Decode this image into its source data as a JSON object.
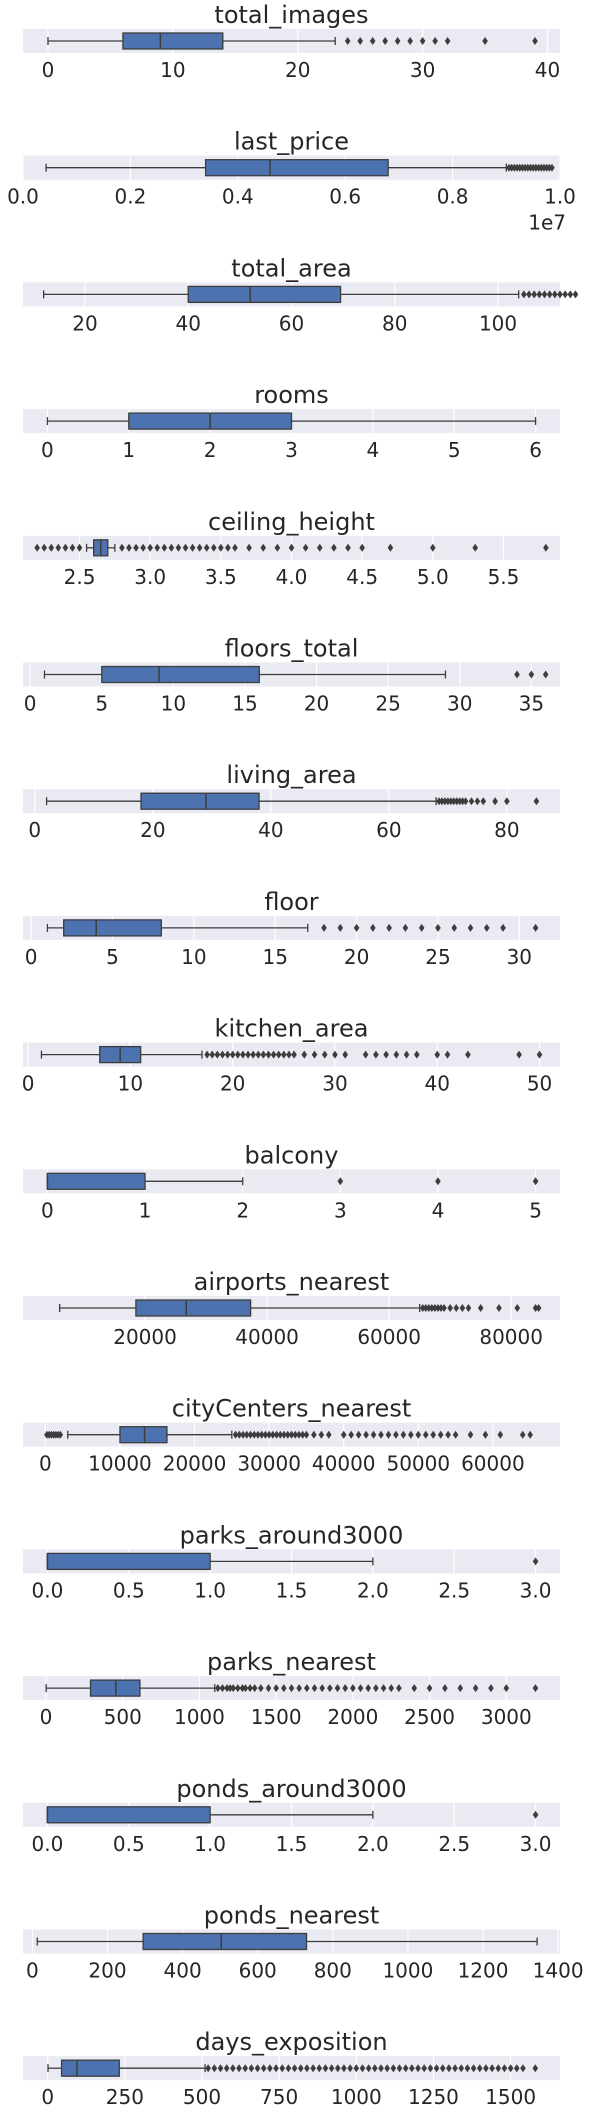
{
  "style": {
    "panel_bg": "#eaeaf2",
    "box_fill": "#4c72b0",
    "line_color": "#3d3d3d",
    "text_color": "#262626",
    "grid": true,
    "grid_color": "#ffffff"
  },
  "chart_data": [
    {
      "type": "boxplot",
      "title": "total_images",
      "orientation": "horizontal",
      "xlim": [
        -2,
        41
      ],
      "ticks": [
        0,
        10,
        20,
        30,
        40
      ],
      "tick_labels": [
        "0",
        "10",
        "20",
        "30",
        "40"
      ],
      "offset_label": "",
      "box": {
        "whisker_low": 0,
        "q1": 6,
        "median": 9,
        "q3": 14,
        "whisker_high": 23
      },
      "outliers": [
        24,
        25,
        26,
        27,
        28,
        29,
        30,
        31,
        32,
        35,
        39
      ]
    },
    {
      "type": "boxplot",
      "title": "last_price",
      "orientation": "horizontal",
      "xlim": [
        0,
        1.0
      ],
      "ticks": [
        0,
        0.2,
        0.4,
        0.6,
        0.8,
        1.0
      ],
      "tick_labels": [
        "0.0",
        "0.2",
        "0.4",
        "0.6",
        "0.8",
        "1.0"
      ],
      "offset_label": "1e7",
      "box": {
        "whisker_low": 0.043,
        "q1": 0.34,
        "median": 0.46,
        "q3": 0.68,
        "whisker_high": 0.9
      },
      "outliers": [
        0.905,
        0.91,
        0.915,
        0.92,
        0.925,
        0.93,
        0.935,
        0.94,
        0.945,
        0.95,
        0.955,
        0.96,
        0.965,
        0.97,
        0.975,
        0.98,
        0.985
      ]
    },
    {
      "type": "boxplot",
      "title": "total_area",
      "orientation": "horizontal",
      "xlim": [
        8,
        112
      ],
      "ticks": [
        20,
        40,
        60,
        80,
        100
      ],
      "tick_labels": [
        "20",
        "40",
        "60",
        "80",
        "100"
      ],
      "offset_label": "",
      "box": {
        "whisker_low": 12,
        "q1": 40,
        "median": 52,
        "q3": 69.5,
        "whisker_high": 104
      },
      "outliers": [
        105,
        106,
        107,
        108,
        109,
        110,
        111,
        112,
        113,
        114,
        115
      ]
    },
    {
      "type": "boxplot",
      "title": "rooms",
      "orientation": "horizontal",
      "xlim": [
        -0.3,
        6.3
      ],
      "ticks": [
        0,
        1,
        2,
        3,
        4,
        5,
        6
      ],
      "tick_labels": [
        "0",
        "1",
        "2",
        "3",
        "4",
        "5",
        "6"
      ],
      "offset_label": "",
      "box": {
        "whisker_low": 0,
        "q1": 1,
        "median": 2,
        "q3": 3,
        "whisker_high": 6
      },
      "outliers": []
    },
    {
      "type": "boxplot",
      "title": "ceiling_height",
      "orientation": "horizontal",
      "xlim": [
        2.1,
        5.9
      ],
      "ticks": [
        2.5,
        3.0,
        3.5,
        4.0,
        4.5,
        5.0,
        5.5
      ],
      "tick_labels": [
        "2.5",
        "3.0",
        "3.5",
        "4.0",
        "4.5",
        "5.0",
        "5.5"
      ],
      "offset_label": "",
      "box": {
        "whisker_low": 2.55,
        "q1": 2.6,
        "median": 2.65,
        "q3": 2.7,
        "whisker_high": 2.75
      },
      "outliers": [
        2.2,
        2.25,
        2.3,
        2.35,
        2.4,
        2.45,
        2.5,
        2.8,
        2.85,
        2.9,
        2.95,
        3.0,
        3.05,
        3.1,
        3.15,
        3.2,
        3.25,
        3.3,
        3.35,
        3.4,
        3.45,
        3.5,
        3.55,
        3.6,
        3.7,
        3.8,
        3.9,
        4.0,
        4.1,
        4.2,
        4.3,
        4.4,
        4.5,
        4.7,
        5.0,
        5.3,
        5.8
      ]
    },
    {
      "type": "boxplot",
      "title": "floors_total",
      "orientation": "horizontal",
      "xlim": [
        -0.5,
        37
      ],
      "ticks": [
        0,
        5,
        10,
        15,
        20,
        25,
        30,
        35
      ],
      "tick_labels": [
        "0",
        "5",
        "10",
        "15",
        "20",
        "25",
        "30",
        "35"
      ],
      "offset_label": "",
      "box": {
        "whisker_low": 1,
        "q1": 5,
        "median": 9,
        "q3": 16,
        "whisker_high": 29
      },
      "outliers": [
        34,
        35,
        36
      ]
    },
    {
      "type": "boxplot",
      "title": "living_area",
      "orientation": "horizontal",
      "xlim": [
        -2,
        89
      ],
      "ticks": [
        0,
        20,
        40,
        60,
        80
      ],
      "tick_labels": [
        "0",
        "20",
        "40",
        "60",
        "80"
      ],
      "offset_label": "",
      "box": {
        "whisker_low": 2,
        "q1": 18,
        "median": 29,
        "q3": 38,
        "whisker_high": 68
      },
      "outliers": [
        68.5,
        69,
        69.5,
        70,
        70.5,
        71,
        71.5,
        72,
        72.5,
        73,
        74,
        75,
        76,
        78,
        80,
        85
      ]
    },
    {
      "type": "boxplot",
      "title": "floor",
      "orientation": "horizontal",
      "xlim": [
        -0.5,
        32.5
      ],
      "ticks": [
        0,
        5,
        10,
        15,
        20,
        25,
        30
      ],
      "tick_labels": [
        "0",
        "5",
        "10",
        "15",
        "20",
        "25",
        "30"
      ],
      "offset_label": "",
      "box": {
        "whisker_low": 1,
        "q1": 2,
        "median": 4,
        "q3": 8,
        "whisker_high": 17
      },
      "outliers": [
        18,
        19,
        20,
        21,
        22,
        23,
        24,
        25,
        26,
        27,
        28,
        29,
        31
      ]
    },
    {
      "type": "boxplot",
      "title": "kitchen_area",
      "orientation": "horizontal",
      "xlim": [
        -0.5,
        52
      ],
      "ticks": [
        0,
        10,
        20,
        30,
        40,
        50
      ],
      "tick_labels": [
        "0",
        "10",
        "20",
        "30",
        "40",
        "50"
      ],
      "offset_label": "",
      "box": {
        "whisker_low": 1.3,
        "q1": 7,
        "median": 9,
        "q3": 11,
        "whisker_high": 17
      },
      "outliers": [
        17.5,
        18,
        18.5,
        19,
        19.5,
        20,
        20.5,
        21,
        21.5,
        22,
        22.5,
        23,
        23.5,
        24,
        24.5,
        25,
        25.5,
        26,
        27,
        28,
        29,
        30,
        31,
        33,
        34,
        35,
        36,
        37,
        38,
        40,
        41,
        43,
        48,
        50
      ]
    },
    {
      "type": "boxplot",
      "title": "balcony",
      "orientation": "horizontal",
      "xlim": [
        -0.25,
        5.25
      ],
      "ticks": [
        0,
        1,
        2,
        3,
        4,
        5
      ],
      "tick_labels": [
        "0",
        "1",
        "2",
        "3",
        "4",
        "5"
      ],
      "offset_label": "",
      "box": {
        "whisker_low": 0,
        "q1": 0,
        "median": 0,
        "q3": 1,
        "whisker_high": 2
      },
      "outliers": [
        3,
        4,
        5
      ]
    },
    {
      "type": "boxplot",
      "title": "airports_nearest",
      "orientation": "horizontal",
      "xlim": [
        0,
        88000
      ],
      "ticks": [
        20000,
        40000,
        60000,
        80000
      ],
      "tick_labels": [
        "20000",
        "40000",
        "60000",
        "80000"
      ],
      "offset_label": "",
      "box": {
        "whisker_low": 6000,
        "q1": 18500,
        "median": 26750,
        "q3": 37300,
        "whisker_high": 65000
      },
      "outliers": [
        65500,
        66000,
        66500,
        67000,
        67500,
        68000,
        68500,
        69000,
        70000,
        71000,
        72000,
        73000,
        75000,
        78000,
        81000,
        84000,
        84500
      ]
    },
    {
      "type": "boxplot",
      "title": "cityCenters_nearest",
      "orientation": "horizontal",
      "xlim": [
        -3000,
        69000
      ],
      "ticks": [
        0,
        10000,
        20000,
        30000,
        40000,
        50000,
        60000
      ],
      "tick_labels": [
        "0",
        "10000",
        "20000",
        "30000",
        "40000",
        "50000",
        "60000"
      ],
      "offset_label": "",
      "box": {
        "whisker_low": 3000,
        "q1": 10000,
        "median": 13300,
        "q3": 16300,
        "whisker_high": 25000
      },
      "outliers": [
        200,
        500,
        800,
        1100,
        1400,
        1700,
        2000,
        25500,
        26000,
        26500,
        27000,
        27500,
        28000,
        28500,
        29000,
        29500,
        30000,
        30500,
        31000,
        31500,
        32000,
        32500,
        33000,
        33500,
        34000,
        34500,
        35000,
        36000,
        37000,
        38000,
        40000,
        41000,
        42000,
        43000,
        44000,
        45000,
        46000,
        47000,
        48000,
        49000,
        50000,
        51000,
        52000,
        53000,
        54000,
        55000,
        57000,
        59000,
        61000,
        64000,
        65000
      ]
    },
    {
      "type": "boxplot",
      "title": "parks_around3000",
      "orientation": "horizontal",
      "xlim": [
        -0.15,
        3.15
      ],
      "ticks": [
        0,
        0.5,
        1.0,
        1.5,
        2.0,
        2.5,
        3.0
      ],
      "tick_labels": [
        "0.0",
        "0.5",
        "1.0",
        "1.5",
        "2.0",
        "2.5",
        "3.0"
      ],
      "offset_label": "",
      "box": {
        "whisker_low": 0,
        "q1": 0,
        "median": 0,
        "q3": 1,
        "whisker_high": 2
      },
      "outliers": [
        3
      ]
    },
    {
      "type": "boxplot",
      "title": "parks_nearest",
      "orientation": "horizontal",
      "xlim": [
        -150,
        3350
      ],
      "ticks": [
        0,
        500,
        1000,
        1500,
        2000,
        2500,
        3000
      ],
      "tick_labels": [
        "0",
        "500",
        "1000",
        "1500",
        "2000",
        "2500",
        "3000"
      ],
      "offset_label": "",
      "box": {
        "whisker_low": 1,
        "q1": 290,
        "median": 455,
        "q3": 612,
        "whisker_high": 1100
      },
      "outliers": [
        1120,
        1150,
        1180,
        1200,
        1220,
        1250,
        1280,
        1300,
        1330,
        1360,
        1400,
        1450,
        1500,
        1550,
        1600,
        1650,
        1700,
        1750,
        1800,
        1850,
        1900,
        1950,
        2000,
        2050,
        2100,
        2150,
        2200,
        2250,
        2300,
        2400,
        2500,
        2600,
        2700,
        2800,
        2900,
        3000,
        3190
      ]
    },
    {
      "type": "boxplot",
      "title": "ponds_around3000",
      "orientation": "horizontal",
      "xlim": [
        -0.15,
        3.15
      ],
      "ticks": [
        0,
        0.5,
        1.0,
        1.5,
        2.0,
        2.5,
        3.0
      ],
      "tick_labels": [
        "0.0",
        "0.5",
        "1.0",
        "1.5",
        "2.0",
        "2.5",
        "3.0"
      ],
      "offset_label": "",
      "box": {
        "whisker_low": 0,
        "q1": 0,
        "median": 0,
        "q3": 1,
        "whisker_high": 2
      },
      "outliers": [
        3
      ]
    },
    {
      "type": "boxplot",
      "title": "ponds_nearest",
      "orientation": "horizontal",
      "xlim": [
        -25,
        1405
      ],
      "ticks": [
        0,
        200,
        400,
        600,
        800,
        1000,
        1200,
        1400
      ],
      "tick_labels": [
        "0",
        "200",
        "400",
        "600",
        "800",
        "1000",
        "1200",
        "1400"
      ],
      "offset_label": "",
      "box": {
        "whisker_low": 13,
        "q1": 295,
        "median": 503,
        "q3": 730,
        "whisker_high": 1344
      },
      "outliers": []
    },
    {
      "type": "boxplot",
      "title": "days_exposition",
      "orientation": "horizontal",
      "xlim": [
        -80,
        1660
      ],
      "ticks": [
        0,
        250,
        500,
        750,
        1000,
        1250,
        1500
      ],
      "tick_labels": [
        "0",
        "250",
        "500",
        "750",
        "1000",
        "1250",
        "1500"
      ],
      "offset_label": "",
      "box": {
        "whisker_low": 1,
        "q1": 45,
        "median": 95,
        "q3": 232,
        "whisker_high": 510
      },
      "outliers": [
        520,
        540,
        560,
        580,
        600,
        620,
        640,
        660,
        680,
        700,
        720,
        740,
        760,
        780,
        800,
        820,
        840,
        860,
        880,
        900,
        920,
        940,
        960,
        980,
        1000,
        1020,
        1040,
        1060,
        1080,
        1100,
        1120,
        1140,
        1160,
        1180,
        1200,
        1220,
        1240,
        1260,
        1280,
        1300,
        1320,
        1340,
        1360,
        1380,
        1400,
        1420,
        1440,
        1460,
        1480,
        1500,
        1520,
        1540,
        1580
      ]
    }
  ]
}
